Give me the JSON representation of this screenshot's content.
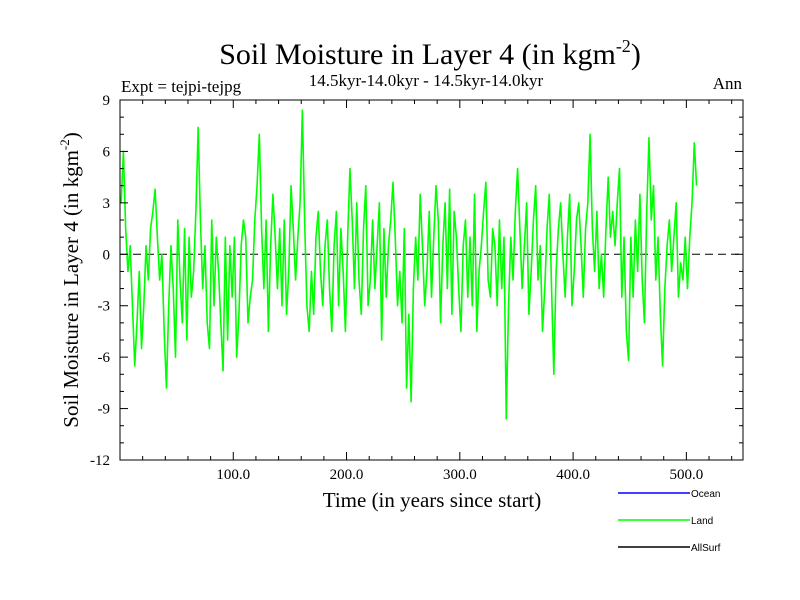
{
  "chart_data": {
    "type": "line",
    "title": "Soil Moisture in Layer 4 (in kgm",
    "title_sup": "-2",
    "title_close": ")",
    "subtitle": "14.5kyr-14.0kyr - 14.5kyr-14.0kyr",
    "expt_label": "Expt = tejpi-tejpg",
    "period_label": "Ann",
    "xlabel": "Time (in years since start)",
    "ylabel": "Soil Moisture in Layer 4 (in kgm",
    "ylabel_sup": "-2",
    "ylabel_close": ")",
    "xlim": [
      0,
      550
    ],
    "ylim": [
      -12,
      9
    ],
    "xticks": [
      100,
      200,
      300,
      400,
      500
    ],
    "xtick_labels": [
      "100.0",
      "200.0",
      "300.0",
      "400.0",
      "500.0"
    ],
    "yticks": [
      -12,
      -9,
      -6,
      -3,
      0,
      3,
      6,
      9
    ],
    "ytick_labels": [
      "-12",
      "-9",
      "-6",
      "-3",
      "0",
      "3",
      "6",
      "9"
    ],
    "zero_line": true,
    "legend": [
      {
        "name": "Ocean",
        "color": "#0000ff"
      },
      {
        "name": "Land",
        "color": "#00ff00"
      },
      {
        "name": "AllSurf",
        "color": "#000000"
      }
    ],
    "series": [
      {
        "name": "Land",
        "color": "#00ff00",
        "x_start": 1,
        "x_step": 2,
        "values": [
          3.0,
          6.0,
          1.5,
          -1.0,
          0.5,
          -3.0,
          -6.5,
          -4.0,
          -1.0,
          -5.5,
          -3.0,
          0.5,
          -1.5,
          1.5,
          2.5,
          3.8,
          1.0,
          -1.5,
          0.0,
          -4.5,
          -7.8,
          -3.0,
          0.5,
          -2.0,
          -6.0,
          2.0,
          -1.5,
          -4.0,
          1.5,
          -5.0,
          1.0,
          -2.5,
          -1.0,
          2.5,
          7.4,
          2.0,
          -2.0,
          0.5,
          -4.0,
          -5.5,
          2.0,
          -3.0,
          1.0,
          -1.0,
          -4.0,
          -6.8,
          1.0,
          -5.0,
          0.5,
          -2.5,
          1.0,
          -6.0,
          -3.5,
          0.5,
          2.0,
          1.0,
          -4.0,
          -2.5,
          -1.5,
          2.0,
          4.0,
          7.0,
          1.5,
          -2.0,
          2.0,
          -4.5,
          0.5,
          3.5,
          1.0,
          -2.0,
          1.5,
          -3.0,
          2.0,
          -3.5,
          -1.0,
          4.0,
          1.5,
          -1.5,
          1.0,
          3.0,
          8.4,
          2.0,
          -3.0,
          -4.5,
          -1.0,
          -3.5,
          1.0,
          2.5,
          -1.0,
          -3.0,
          0.5,
          2.0,
          -2.0,
          -4.5,
          0.5,
          2.5,
          -3.0,
          1.5,
          -1.0,
          -4.5,
          1.0,
          5.0,
          2.0,
          -2.0,
          3.0,
          -1.5,
          -3.5,
          1.5,
          4.0,
          -3.0,
          -1.5,
          2.0,
          -2.0,
          0.5,
          3.0,
          -5.0,
          1.5,
          -2.5,
          0.5,
          2.0,
          4.2,
          1.0,
          -3.0,
          -1.0,
          -4.0,
          1.5,
          -7.8,
          -3.5,
          -8.6,
          -2.0,
          1.0,
          -1.5,
          3.5,
          0.5,
          -3.0,
          -1.0,
          2.5,
          -2.5,
          1.0,
          4.0,
          2.0,
          -4.0,
          0.5,
          3.0,
          -2.0,
          3.8,
          -3.5,
          2.5,
          1.0,
          -2.0,
          -4.5,
          0.5,
          2.0,
          -2.5,
          1.0,
          -3.0,
          3.5,
          -4.5,
          -1.0,
          0.5,
          2.5,
          4.2,
          -1.5,
          -2.5,
          1.5,
          0.5,
          -3.0,
          2.0,
          -2.0,
          1.0,
          -9.6,
          -3.0,
          1.0,
          -1.5,
          2.5,
          5.0,
          1.5,
          -2.0,
          0.5,
          3.0,
          -3.5,
          -1.0,
          2.0,
          4.0,
          -1.5,
          0.5,
          -4.5,
          -2.0,
          1.5,
          3.5,
          -2.0,
          -7.0,
          -1.0,
          1.5,
          3.0,
          0.0,
          -2.5,
          1.0,
          3.5,
          -3.0,
          -1.0,
          2.0,
          3.0,
          0.5,
          -2.5,
          1.5,
          3.0,
          7.0,
          1.5,
          -1.0,
          2.5,
          -2.0,
          0.0,
          -2.5,
          1.5,
          4.5,
          1.0,
          2.5,
          0.5,
          3.0,
          5.0,
          -2.5,
          1.0,
          -4.5,
          -6.2,
          1.0,
          -2.5,
          2.0,
          -1.0,
          3.5,
          -1.5,
          -4.0,
          2.5,
          6.8,
          2.0,
          4.0,
          -1.5,
          1.0,
          -3.5,
          -6.5,
          -2.0,
          0.5,
          2.0,
          -1.0,
          1.0,
          3.0,
          -2.5,
          -0.5,
          -1.5,
          1.0,
          -2.0,
          1.0,
          3.0,
          6.5,
          4.0
        ]
      }
    ]
  }
}
